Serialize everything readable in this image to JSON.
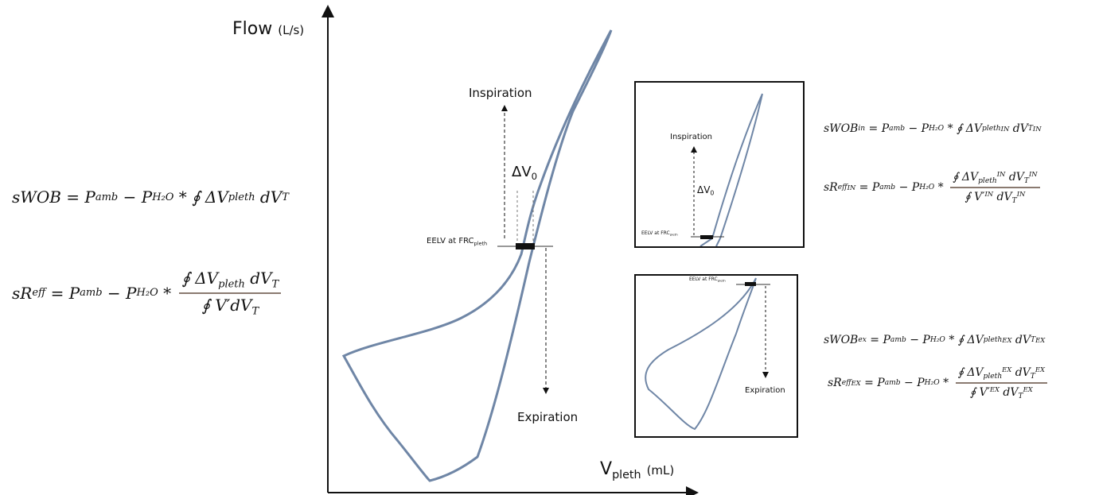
{
  "axes": {
    "y_label": {
      "text": "Flow",
      "unit": "(L/s)"
    },
    "x_label": {
      "text": "V",
      "sub": "pleth",
      "unit": "(mL)"
    }
  },
  "main": {
    "inspiration": "Inspiration",
    "expiration": "Expiration",
    "delta": {
      "text": "ΔV",
      "sub": "0"
    },
    "eelv": {
      "text": "EELV at FRC",
      "sub": "pleth"
    }
  },
  "inset_in": {
    "inspiration": "Inspiration",
    "delta": {
      "text": "ΔV",
      "sub": "0"
    },
    "eelv": {
      "text": "EELV at FRC",
      "sub": "pleth"
    }
  },
  "inset_ex": {
    "expiration": "Expiration",
    "eelv": {
      "text": "EELV at FRC",
      "sub": "pleth"
    }
  },
  "equations": [
    {
      "pieces": [
        {
          "text": "sWOB = P",
          "pos": "base"
        },
        {
          "text": "amb",
          "pos": "sub"
        },
        {
          "text": " − P",
          "pos": "base"
        },
        {
          "text": "H₂O",
          "pos": "sub"
        },
        {
          "text": " * ∮ ΔV",
          "pos": "base"
        },
        {
          "text": "pleth",
          "pos": "sub"
        },
        {
          "text": " dV",
          "pos": "base"
        },
        {
          "text": "T",
          "pos": "sub"
        }
      ]
    },
    {
      "pieces": [
        {
          "text": "sR",
          "pos": "base"
        },
        {
          "text": "eff",
          "pos": "sub"
        },
        {
          "text": " = P",
          "pos": "base"
        },
        {
          "text": "amb",
          "pos": "sub"
        },
        {
          "text": " − P",
          "pos": "base"
        },
        {
          "text": "H₂O",
          "pos": "sub"
        },
        {
          "text": " * ",
          "pos": "base"
        },
        {
          "num": [
            {
              "text": "∮ ΔV",
              "pos": "base"
            },
            {
              "text": "pleth",
              "pos": "sub"
            },
            {
              "text": " dV",
              "pos": "base"
            },
            {
              "text": "T",
              "pos": "sub"
            }
          ],
          "den": [
            {
              "text": "∮ V′dV",
              "pos": "base"
            },
            {
              "text": "T",
              "pos": "sub"
            }
          ]
        }
      ]
    },
    {
      "pieces": [
        {
          "text": "sWOB",
          "pos": "base"
        },
        {
          "text": "in",
          "pos": "sub"
        },
        {
          "text": " = P",
          "pos": "base"
        },
        {
          "text": "amb",
          "pos": "sub"
        },
        {
          "text": " − P",
          "pos": "base"
        },
        {
          "text": "H₂O",
          "pos": "sub"
        },
        {
          "text": " * ∮ ΔV",
          "pos": "base"
        },
        {
          "text": "pleth",
          "pos": "sub"
        },
        {
          "text": "IN",
          "pos": "sup"
        },
        {
          "text": " dV",
          "pos": "base"
        },
        {
          "text": "T",
          "pos": "sub"
        },
        {
          "text": "IN",
          "pos": "sup"
        }
      ]
    },
    {
      "pieces": [
        {
          "text": "sR",
          "pos": "base"
        },
        {
          "text": "eff",
          "pos": "sub"
        },
        {
          "text": "IN",
          "pos": "sup"
        },
        {
          "text": " = P",
          "pos": "base"
        },
        {
          "text": "amb",
          "pos": "sub"
        },
        {
          "text": " − P",
          "pos": "base"
        },
        {
          "text": "H₂O",
          "pos": "sub"
        },
        {
          "text": " * ",
          "pos": "base"
        },
        {
          "num": [
            {
              "text": "∮ ΔV",
              "pos": "base"
            },
            {
              "text": "pleth",
              "pos": "sub"
            },
            {
              "text": "IN",
              "pos": "sup"
            },
            {
              "text": " dV",
              "pos": "base"
            },
            {
              "text": "T",
              "pos": "sub"
            },
            {
              "text": "IN",
              "pos": "sup"
            }
          ],
          "den": [
            {
              "text": "∮ V′",
              "pos": "base"
            },
            {
              "text": "IN",
              "pos": "sup"
            },
            {
              "text": " dV",
              "pos": "base"
            },
            {
              "text": "T",
              "pos": "sub"
            },
            {
              "text": "IN",
              "pos": "sup"
            }
          ]
        }
      ]
    },
    {
      "pieces": [
        {
          "text": "sWOB",
          "pos": "base"
        },
        {
          "text": "ex",
          "pos": "sub"
        },
        {
          "text": " = P",
          "pos": "base"
        },
        {
          "text": "amb",
          "pos": "sub"
        },
        {
          "text": " − P",
          "pos": "base"
        },
        {
          "text": "H₂O",
          "pos": "sub"
        },
        {
          "text": " * ∮ ΔV",
          "pos": "base"
        },
        {
          "text": "pleth",
          "pos": "sub"
        },
        {
          "text": "EX",
          "pos": "sup"
        },
        {
          "text": " dV",
          "pos": "base"
        },
        {
          "text": "T",
          "pos": "sub"
        },
        {
          "text": "EX",
          "pos": "sup"
        }
      ]
    },
    {
      "pieces": [
        {
          "text": "sR",
          "pos": "base"
        },
        {
          "text": "eff",
          "pos": "sub"
        },
        {
          "text": "EX",
          "pos": "sup"
        },
        {
          "text": " = P",
          "pos": "base"
        },
        {
          "text": "amb",
          "pos": "sub"
        },
        {
          "text": " − P",
          "pos": "base"
        },
        {
          "text": "H₂O",
          "pos": "sub"
        },
        {
          "text": " * ",
          "pos": "base"
        },
        {
          "num": [
            {
              "text": "∮ ΔV",
              "pos": "base"
            },
            {
              "text": "pleth",
              "pos": "sub"
            },
            {
              "text": "EX",
              "pos": "sup"
            },
            {
              "text": " dV",
              "pos": "base"
            },
            {
              "text": "T",
              "pos": "sub"
            },
            {
              "text": "EX",
              "pos": "sup"
            }
          ],
          "den": [
            {
              "text": "∮ V′",
              "pos": "base"
            },
            {
              "text": "EX",
              "pos": "sup"
            },
            {
              "text": " dV",
              "pos": "base"
            },
            {
              "text": "T",
              "pos": "sub"
            },
            {
              "text": "EX",
              "pos": "sup"
            }
          ]
        }
      ]
    }
  ]
}
